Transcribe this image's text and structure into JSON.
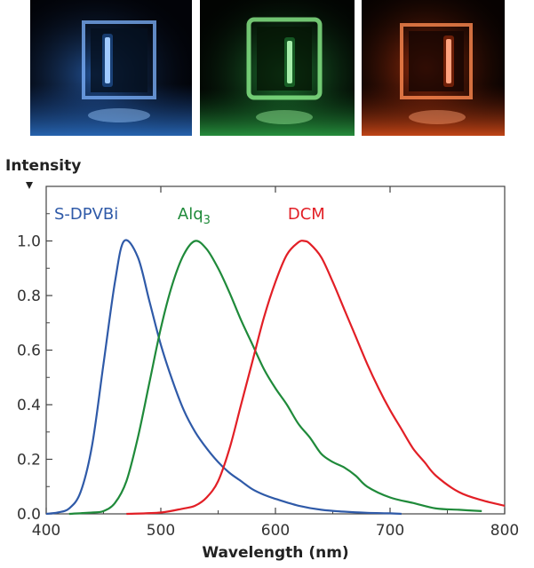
{
  "photos": [
    {
      "name": "blue-device-photo",
      "glow": "#3a8cff",
      "bar": "#d8ecff"
    },
    {
      "name": "green-device-photo",
      "glow": "#33cc55",
      "bar": "#e3ffd8"
    },
    {
      "name": "red-device-photo",
      "glow": "#ff4a14",
      "bar": "#ffd2b8"
    }
  ],
  "chart_data": {
    "type": "line",
    "xlabel": "Wavelength (nm)",
    "ylabel": "Intensity",
    "xlim": [
      400,
      800
    ],
    "ylim": [
      0,
      1.2
    ],
    "xticks": [
      400,
      500,
      600,
      700,
      800
    ],
    "yticks": [
      "0.0",
      "0.2",
      "0.4",
      "0.6",
      "0.8",
      "1.0"
    ],
    "grid": false,
    "series": [
      {
        "name": "S-DPVBi",
        "color": "#2f5aa8",
        "x": [
          400,
          410,
          420,
          430,
          440,
          450,
          460,
          468,
          480,
          490,
          500,
          510,
          520,
          530,
          540,
          550,
          560,
          570,
          580,
          590,
          600,
          620,
          640,
          660,
          680,
          700,
          710
        ],
        "y": [
          0.0,
          0.005,
          0.02,
          0.08,
          0.25,
          0.55,
          0.85,
          1.0,
          0.94,
          0.78,
          0.62,
          0.49,
          0.38,
          0.3,
          0.24,
          0.19,
          0.15,
          0.12,
          0.09,
          0.07,
          0.055,
          0.03,
          0.015,
          0.008,
          0.004,
          0.002,
          0.0
        ]
      },
      {
        "name": "Alq3",
        "color": "#1f8a3a",
        "x": [
          420,
          440,
          450,
          460,
          470,
          480,
          490,
          500,
          510,
          520,
          530,
          540,
          550,
          560,
          570,
          580,
          590,
          600,
          610,
          620,
          630,
          640,
          650,
          660,
          670,
          680,
          700,
          720,
          740,
          760,
          780
        ],
        "y": [
          0.0,
          0.005,
          0.01,
          0.04,
          0.12,
          0.28,
          0.48,
          0.68,
          0.84,
          0.95,
          1.0,
          0.97,
          0.9,
          0.81,
          0.71,
          0.62,
          0.53,
          0.46,
          0.4,
          0.33,
          0.28,
          0.22,
          0.19,
          0.17,
          0.14,
          0.1,
          0.06,
          0.04,
          0.02,
          0.015,
          0.01
        ]
      },
      {
        "name": "DCM",
        "color": "#e21f26",
        "x": [
          470,
          500,
          520,
          530,
          540,
          550,
          560,
          570,
          580,
          590,
          600,
          610,
          620,
          625,
          630,
          640,
          650,
          660,
          670,
          680,
          690,
          700,
          710,
          720,
          730,
          740,
          760,
          780,
          800
        ],
        "y": [
          0.0,
          0.005,
          0.02,
          0.03,
          0.06,
          0.12,
          0.24,
          0.4,
          0.56,
          0.72,
          0.85,
          0.95,
          0.995,
          1.0,
          0.99,
          0.94,
          0.85,
          0.75,
          0.65,
          0.55,
          0.46,
          0.38,
          0.31,
          0.24,
          0.19,
          0.14,
          0.08,
          0.05,
          0.03
        ]
      }
    ],
    "labels": [
      {
        "text": "S-DPVBi",
        "color": "#2f5aa8"
      },
      {
        "text": "Alq",
        "sub": "3",
        "color": "#1f8a3a"
      },
      {
        "text": "DCM",
        "color": "#e21f26"
      }
    ]
  }
}
